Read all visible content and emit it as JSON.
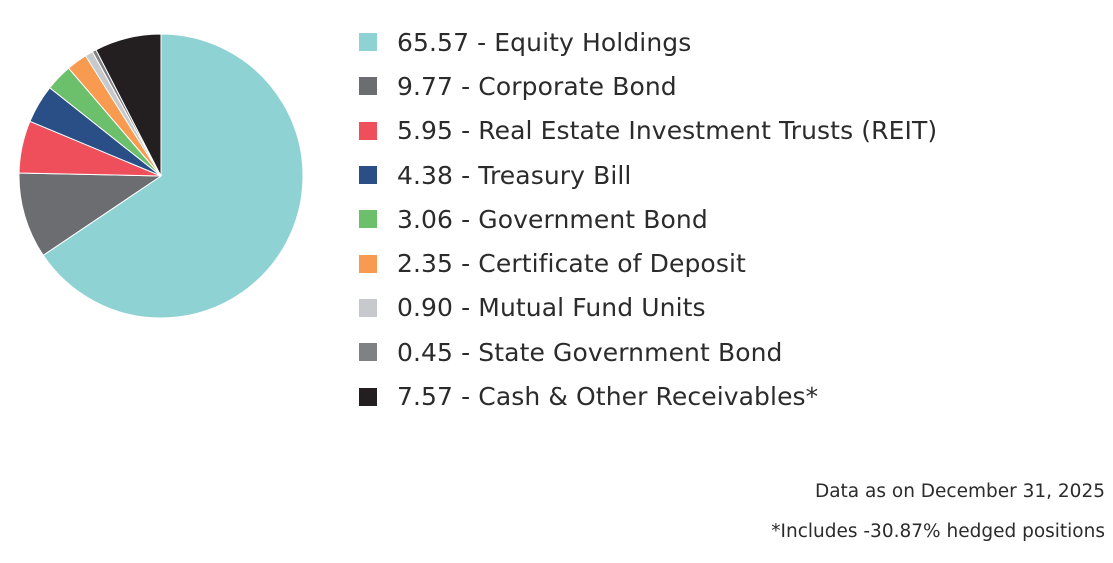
{
  "chart_data": {
    "type": "pie",
    "slices": [
      {
        "value_label": "65.57",
        "name": "Equity Holdings",
        "value": 65.57,
        "color": "#8ed2d3"
      },
      {
        "value_label": "9.77",
        "name": "Corporate Bond",
        "value": 9.77,
        "color": "#6b6d70"
      },
      {
        "value_label": "5.95",
        "name": "Real Estate Investment Trusts (REIT)",
        "value": 5.95,
        "color": "#ee4f5b"
      },
      {
        "value_label": "4.38",
        "name": "Treasury Bill",
        "value": 4.38,
        "color": "#2a4f86"
      },
      {
        "value_label": "3.06",
        "name": "Government Bond",
        "value": 3.06,
        "color": "#6cc06b"
      },
      {
        "value_label": "2.35",
        "name": "Certificate of Deposit",
        "value": 2.35,
        "color": "#f89a4f"
      },
      {
        "value_label": "0.90",
        "name": "Mutual Fund Units",
        "value": 0.9,
        "color": "#c8c9cc"
      },
      {
        "value_label": "0.45",
        "name": "State Government Bond",
        "value": 0.45,
        "color": "#808184"
      },
      {
        "value_label": "7.57",
        "name": "Cash & Other Receivables*",
        "value": 7.57,
        "color": "#231f20"
      }
    ],
    "legend_position": "right",
    "start": "12 o'clock",
    "direction": "clockwise"
  },
  "legend": {
    "items": [
      "65.57 - Equity Holdings",
      "9.77 - Corporate Bond",
      "5.95 - Real Estate Investment Trusts (REIT)",
      "4.38 - Treasury Bill",
      "3.06 - Government Bond",
      "2.35 - Certificate of Deposit",
      "0.90 - Mutual Fund Units",
      "0.45 - State Government Bond",
      "7.57 - Cash & Other Receivables*"
    ]
  },
  "footnotes": {
    "date": "Data as on December 31, 2025",
    "hedge": "*Includes -30.87% hedged positions"
  }
}
